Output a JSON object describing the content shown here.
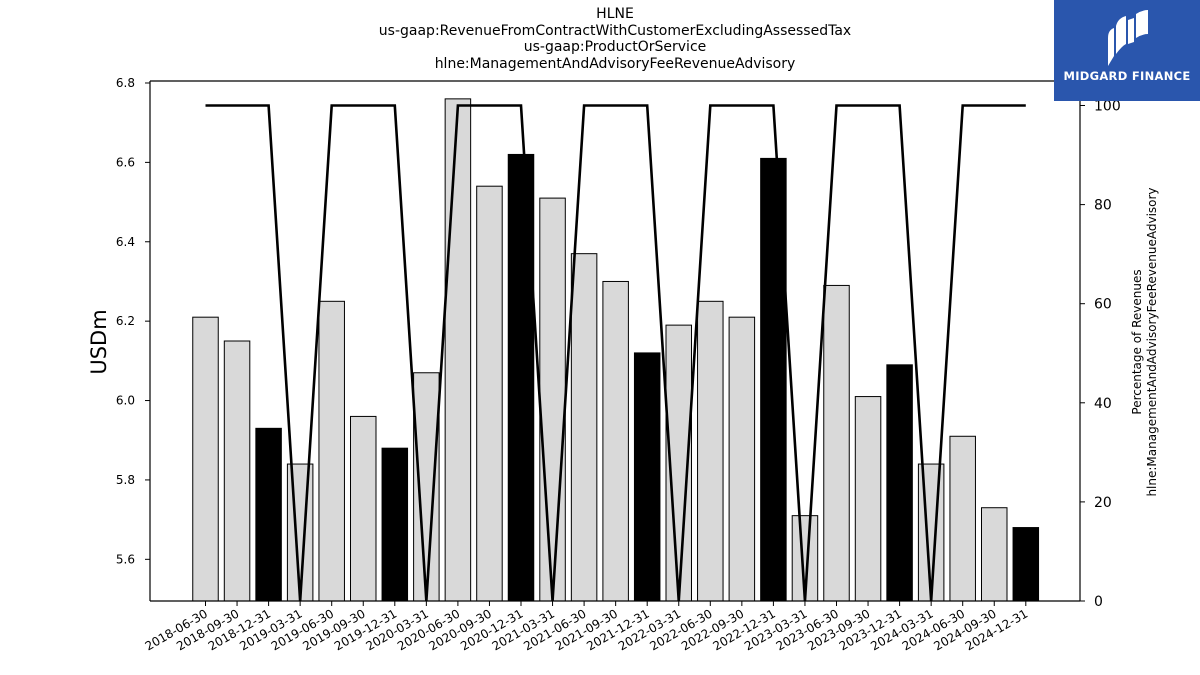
{
  "title": {
    "lines": [
      "HLNE",
      "us-gaap:RevenueFromContractWithCustomerExcludingAssessedTax",
      "us-gaap:ProductOrService",
      "hlne:ManagementAndAdvisoryFeeRevenueAdvisory"
    ]
  },
  "logo": {
    "text": "MIDGARD FINANCE",
    "color": "#2a56ad"
  },
  "chart_data": {
    "type": "bar",
    "ylabel": "USDm",
    "y2label_lines": [
      "Percentage of Revenues",
      "hlne:ManagementAndAdvisoryFeeRevenueAdvisory"
    ],
    "ylim": [
      5.495,
      6.805
    ],
    "y2lim": [
      0,
      100
    ],
    "yticks": [
      "5.6",
      "5.8",
      "6.0",
      "6.2",
      "6.4",
      "6.6",
      "6.8"
    ],
    "y2ticks": [
      "0",
      "20",
      "40",
      "60",
      "80",
      "100"
    ],
    "grid": false,
    "colors": {
      "quarter_bar": "#d9d9d9",
      "annual_bar": "#000000",
      "line": "#000000"
    },
    "categories": [
      "2018-06-30",
      "2018-09-30",
      "2018-12-31",
      "2019-03-31",
      "2019-06-30",
      "2019-09-30",
      "2019-12-31",
      "2020-03-31",
      "2020-06-30",
      "2020-09-30",
      "2020-12-31",
      "2021-03-31",
      "2021-06-30",
      "2021-09-30",
      "2021-12-31",
      "2022-03-31",
      "2022-06-30",
      "2022-09-30",
      "2022-12-31",
      "2023-03-31",
      "2023-06-30",
      "2023-09-30",
      "2023-12-31",
      "2024-03-31",
      "2024-06-30",
      "2024-09-30",
      "2024-12-31"
    ],
    "values": [
      6.21,
      6.15,
      5.93,
      5.84,
      6.25,
      5.96,
      5.88,
      6.07,
      6.76,
      6.54,
      6.62,
      6.51,
      6.37,
      6.3,
      6.12,
      6.19,
      6.25,
      6.21,
      6.61,
      5.71,
      6.29,
      6.01,
      6.09,
      5.84,
      5.91,
      5.73,
      5.68
    ],
    "highlight": [
      false,
      false,
      true,
      false,
      false,
      false,
      true,
      false,
      false,
      false,
      true,
      false,
      false,
      false,
      true,
      false,
      false,
      false,
      true,
      false,
      false,
      false,
      true,
      false,
      false,
      false,
      true
    ],
    "percentage": [
      100,
      100,
      100,
      0,
      100,
      100,
      100,
      0,
      100,
      100,
      100,
      0,
      100,
      100,
      100,
      0,
      100,
      100,
      100,
      0,
      100,
      100,
      100,
      0,
      100,
      100,
      100
    ]
  }
}
